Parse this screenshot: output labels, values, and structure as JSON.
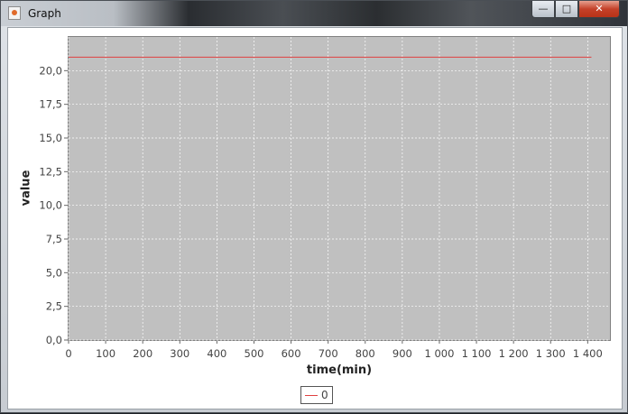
{
  "window": {
    "title": "Graph",
    "controls": {
      "minimize": "—",
      "maximize": "□",
      "close": "✕"
    }
  },
  "colors": {
    "plot_background": "#c0c0c0",
    "series_line": "#e04040",
    "grid": "#ffffff"
  },
  "chart_data": {
    "type": "line",
    "xlabel": "time(min)",
    "ylabel": "value",
    "xlim": [
      0,
      1460
    ],
    "ylim": [
      0,
      22.5
    ],
    "x_ticks": [
      0,
      100,
      200,
      300,
      400,
      500,
      600,
      700,
      800,
      900,
      1000,
      1100,
      1200,
      1300,
      1400
    ],
    "x_tick_labels": [
      "0",
      "100",
      "200",
      "300",
      "400",
      "500",
      "600",
      "700",
      "800",
      "900",
      "1 000",
      "1 100",
      "1 200",
      "1 300",
      "1 400"
    ],
    "y_ticks": [
      0,
      2.5,
      5,
      7.5,
      10,
      12.5,
      15,
      17.5,
      20
    ],
    "y_tick_labels": [
      "0,0",
      "2,5",
      "5,0",
      "7,5",
      "10,0",
      "12,5",
      "15,0",
      "17,5",
      "20,0"
    ],
    "grid": true,
    "legend_position": "bottom",
    "series": [
      {
        "name": "0",
        "x": [
          0,
          1410
        ],
        "y": [
          21,
          21
        ]
      }
    ]
  }
}
